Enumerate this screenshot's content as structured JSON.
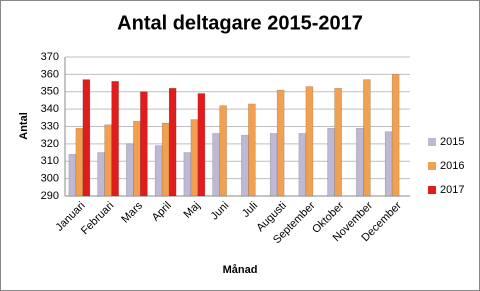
{
  "chart_data": {
    "type": "bar",
    "title": "Antal deltagare 2015-2017",
    "x_label": "Månad",
    "y_label": "Antal",
    "categories": [
      "Januari",
      "Februari",
      "Mars",
      "April",
      "Maj",
      "Juni",
      "Juli",
      "Augusti",
      "September",
      "Oktober",
      "November",
      "December"
    ],
    "series": [
      {
        "name": "2015",
        "color": "#bdb8d6",
        "values": [
          314,
          315,
          320,
          319,
          315,
          326,
          325,
          326,
          326,
          329,
          329,
          327
        ]
      },
      {
        "name": "2016",
        "color": "#f0a050",
        "values": [
          329,
          331,
          333,
          332,
          334,
          342,
          343,
          351,
          353,
          352,
          357,
          360
        ]
      },
      {
        "name": "2017",
        "color": "#e01c1c",
        "values": [
          357,
          356,
          350,
          352,
          349,
          null,
          null,
          null,
          null,
          null,
          null,
          null
        ]
      }
    ],
    "ylim": [
      290,
      370
    ],
    "yticks": [
      290,
      300,
      310,
      320,
      330,
      340,
      350,
      360,
      370
    ],
    "grid": true,
    "legend": "right"
  }
}
